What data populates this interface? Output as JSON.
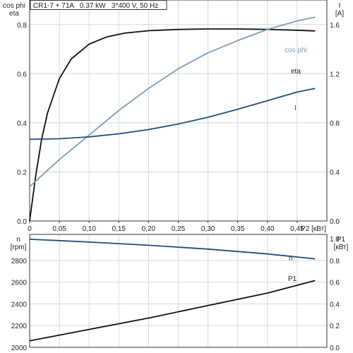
{
  "chart_data": [
    {
      "type": "line",
      "title": "CR1-7 + 71A   0.37 kW   3*400 V, 50 Hz",
      "left_axis_label": [
        "cos phi",
        "eta"
      ],
      "right_axis_label": [
        "I",
        "[A]"
      ],
      "xlabel": "P2 [кВт]",
      "xlim": [
        0,
        0.5
      ],
      "x_ticks": [
        "0",
        "0,05",
        "0,10",
        "0,15",
        "0,20",
        "0,25",
        "0,30",
        "0,35",
        "0,40",
        "0,45"
      ],
      "ylim_left": [
        0,
        0.9
      ],
      "y_ticks_left": [
        "0.0",
        "0.2",
        "0.4",
        "0.6",
        "0.8"
      ],
      "ylim_right": [
        0,
        1.8
      ],
      "y_ticks_right": [
        "0.0",
        "0.4",
        "0.8",
        "1.2",
        "1.6"
      ],
      "grid": true,
      "series": [
        {
          "name": "eta",
          "axis": "left",
          "color": "#111111",
          "x": [
            0,
            0.01,
            0.02,
            0.03,
            0.05,
            0.07,
            0.1,
            0.13,
            0.16,
            0.2,
            0.25,
            0.3,
            0.35,
            0.4,
            0.45,
            0.48
          ],
          "y": [
            0,
            0.18,
            0.33,
            0.44,
            0.58,
            0.66,
            0.72,
            0.75,
            0.765,
            0.775,
            0.78,
            0.782,
            0.782,
            0.78,
            0.777,
            0.774
          ]
        },
        {
          "name": "cos phi",
          "axis": "left",
          "color": "#7d9cb8",
          "x": [
            0,
            0.05,
            0.1,
            0.15,
            0.2,
            0.25,
            0.3,
            0.35,
            0.4,
            0.45,
            0.48
          ],
          "y": [
            0.14,
            0.25,
            0.35,
            0.45,
            0.54,
            0.62,
            0.685,
            0.735,
            0.78,
            0.815,
            0.83
          ]
        },
        {
          "name": "I",
          "axis": "right",
          "color": "#1f4e79",
          "x": [
            0,
            0.05,
            0.1,
            0.15,
            0.2,
            0.25,
            0.3,
            0.35,
            0.4,
            0.45,
            0.48
          ],
          "y": [
            0.665,
            0.67,
            0.685,
            0.71,
            0.745,
            0.79,
            0.845,
            0.91,
            0.98,
            1.05,
            1.08
          ]
        }
      ]
    },
    {
      "type": "line",
      "left_axis_label": [
        "n",
        "[rpm]"
      ],
      "right_axis_label": [
        "P1",
        "[кВт]"
      ],
      "xlim": [
        0,
        0.5
      ],
      "ylim_left": [
        2000,
        3040
      ],
      "y_ticks_left": [
        "2000",
        "2200",
        "2400",
        "2600",
        "2800"
      ],
      "ylim_right": [
        0,
        1.04
      ],
      "y_ticks_right": [
        "0.0",
        "0.2",
        "0.4",
        "0.6",
        "0.8",
        "1.0"
      ],
      "grid": true,
      "series": [
        {
          "name": "n",
          "axis": "left",
          "color": "#1f4e79",
          "x": [
            0,
            0.1,
            0.2,
            0.3,
            0.4,
            0.48
          ],
          "y": [
            2995,
            2970,
            2940,
            2905,
            2860,
            2815
          ]
        },
        {
          "name": "P1",
          "axis": "right",
          "color": "#111111",
          "x": [
            0,
            0.1,
            0.2,
            0.3,
            0.4,
            0.48
          ],
          "y": [
            0.06,
            0.165,
            0.27,
            0.385,
            0.5,
            0.615
          ]
        }
      ]
    }
  ]
}
